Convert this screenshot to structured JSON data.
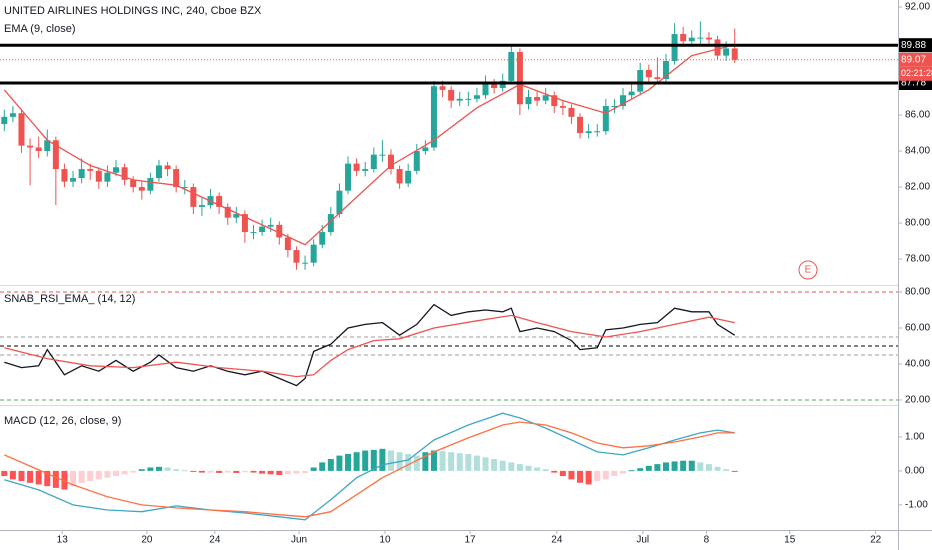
{
  "chart_data": [
    {
      "type": "candlestick",
      "title": "UNITED AIRLINES HOLDINGS INC, 240, Cboe BZX",
      "subtitle": "EMA (9, close)",
      "up_color": "#26a69a",
      "down_color": "#ef5350",
      "open": [
        85.5,
        85.9,
        86.1,
        84.3,
        84.2,
        84.0,
        84.6,
        83.0,
        82.3,
        82.5,
        83.0,
        82.9,
        82.3,
        82.8,
        83.1,
        82.4,
        82.0,
        81.8,
        82.5,
        83.2,
        83.0,
        82.0,
        82.0,
        80.9,
        81.0,
        81.5,
        80.9,
        80.3,
        80.5,
        79.5,
        79.5,
        79.8,
        79.9,
        79.2,
        78.5,
        77.8,
        77.8,
        78.8,
        79.5,
        80.5,
        81.8,
        83.3,
        82.9,
        83.0,
        83.8,
        83.8,
        83.0,
        82.2,
        82.9,
        84.0,
        84.2,
        87.6,
        87.4,
        86.8,
        86.9,
        86.9,
        87.1,
        87.8,
        87.5,
        87.9,
        89.5,
        86.6,
        87.0,
        86.8,
        87.1,
        86.5,
        86.4,
        85.9,
        85.0,
        85.1,
        85.1,
        86.5,
        86.5,
        87.1,
        87.3,
        88.5,
        88.1,
        88.0,
        89.0,
        90.5,
        90.1,
        90.3,
        90.3,
        90.2,
        89.3,
        89.7
      ],
      "high": [
        86.3,
        86.5,
        86.3,
        84.7,
        84.8,
        85.2,
        84.8,
        83.3,
        82.9,
        83.6,
        83.3,
        83.1,
        83.2,
        83.5,
        83.3,
        82.6,
        82.3,
        82.8,
        83.5,
        83.4,
        83.2,
        82.4,
        82.2,
        81.4,
        81.9,
        81.7,
        81.1,
        80.9,
        80.7,
        79.9,
        80.2,
        80.3,
        80.1,
        79.4,
        78.7,
        78.2,
        79.1,
        79.9,
        80.9,
        82.2,
        83.7,
        83.6,
        83.4,
        84.2,
        84.6,
        84.1,
        83.2,
        83.3,
        84.4,
        84.6,
        87.9,
        87.9,
        87.6,
        87.3,
        87.3,
        87.5,
        88.2,
        88.0,
        88.3,
        89.8,
        89.7,
        87.4,
        87.3,
        87.5,
        87.3,
        86.8,
        86.6,
        86.1,
        85.5,
        85.5,
        86.9,
        86.9,
        87.5,
        87.7,
        88.9,
        88.8,
        89.2,
        89.4,
        91.1,
        90.9,
        90.7,
        91.2,
        90.6,
        90.4,
        90.1,
        90.8
      ],
      "low": [
        85.1,
        85.6,
        83.9,
        82.1,
        83.6,
        83.7,
        81.0,
        82.0,
        82.0,
        82.2,
        82.4,
        81.9,
        82.0,
        82.6,
        82.1,
        81.7,
        81.3,
        81.6,
        82.3,
        82.6,
        81.7,
        81.6,
        80.5,
        80.4,
        80.8,
        80.5,
        79.9,
        80.0,
        78.9,
        79.1,
        79.3,
        79.5,
        78.8,
        78.1,
        77.4,
        77.4,
        77.6,
        78.6,
        79.3,
        80.3,
        81.6,
        82.6,
        82.6,
        82.8,
        83.4,
        82.7,
        81.9,
        82.0,
        82.7,
        83.8,
        84.0,
        87.0,
        86.4,
        86.5,
        86.5,
        86.7,
        86.9,
        87.2,
        87.3,
        87.7,
        86.0,
        86.3,
        86.5,
        86.6,
        86.1,
        86.0,
        85.5,
        84.7,
        84.7,
        84.8,
        84.9,
        86.1,
        86.3,
        86.9,
        87.1,
        87.8,
        87.7,
        87.8,
        88.8,
        89.8,
        89.9,
        89.9,
        89.9,
        89.1,
        89.0,
        88.9
      ],
      "close": [
        85.9,
        86.1,
        84.3,
        84.2,
        84.0,
        84.6,
        83.0,
        82.3,
        82.5,
        83.0,
        82.9,
        82.3,
        82.8,
        83.1,
        82.4,
        82.0,
        81.8,
        82.5,
        83.2,
        83.0,
        82.0,
        82.0,
        80.9,
        81.0,
        81.5,
        80.9,
        80.3,
        80.5,
        79.5,
        79.5,
        79.8,
        79.9,
        79.2,
        78.5,
        77.8,
        77.8,
        78.8,
        79.5,
        80.5,
        81.8,
        83.3,
        82.9,
        83.0,
        83.8,
        83.8,
        83.0,
        82.2,
        82.9,
        84.0,
        84.2,
        87.6,
        87.4,
        86.8,
        86.9,
        86.9,
        87.1,
        87.8,
        87.5,
        87.9,
        89.5,
        86.6,
        87.0,
        86.8,
        87.1,
        86.5,
        86.4,
        85.9,
        85.0,
        85.1,
        85.1,
        86.5,
        86.5,
        87.1,
        87.3,
        88.5,
        88.1,
        88.0,
        89.0,
        90.5,
        90.1,
        90.3,
        90.3,
        90.2,
        89.3,
        89.7,
        89.07
      ],
      "series": [
        {
          "color": "#ef5350",
          "x": [
            0,
            5,
            10,
            15,
            20,
            25,
            30,
            35,
            40,
            45,
            50,
            55,
            60,
            65,
            70,
            75,
            80,
            85
          ],
          "values": [
            87.4,
            84.6,
            83.2,
            82.4,
            82.1,
            81.0,
            79.9,
            78.8,
            81.0,
            83.2,
            84.6,
            86.4,
            87.7,
            86.8,
            86.1,
            87.4,
            89.3,
            89.9
          ]
        }
      ],
      "price_lines": [
        89.88,
        87.78
      ],
      "price_line_color": "#000000",
      "last_price": 89.07,
      "countdown": "02:21:28",
      "marker": "E",
      "xlim": [
        -0.5,
        104
      ],
      "ylim": [
        76.56,
        92.39
      ],
      "yticks": [
        {
          "value": 78,
          "label": "78.00"
        },
        {
          "value": 80,
          "label": "80.00"
        },
        {
          "value": 82,
          "label": "82.00"
        },
        {
          "value": 84,
          "label": "84.00"
        },
        {
          "value": 86,
          "label": "86.00"
        },
        {
          "value": 92,
          "label": "92.00"
        }
      ]
    },
    {
      "type": "line",
      "title": "SNAB_RSI_EMA_ (14, 12)",
      "series": [
        {
          "color": "#131722",
          "x": [
            0,
            2,
            4,
            5,
            7,
            9,
            11,
            13,
            15,
            17,
            18,
            20,
            22,
            24,
            26,
            28,
            30,
            32,
            34,
            35,
            36,
            38,
            40,
            42,
            44,
            46,
            48,
            50,
            52,
            54,
            56,
            58,
            59,
            60,
            62,
            64,
            66,
            67,
            69,
            70,
            72,
            74,
            76,
            78,
            80,
            82,
            83,
            85
          ],
          "values": [
            41,
            38,
            39,
            48,
            34,
            39,
            36,
            42,
            36,
            41,
            45,
            38,
            36,
            39,
            36,
            34,
            36,
            32,
            28,
            32,
            47,
            51,
            60,
            62,
            63,
            56,
            62,
            73,
            67,
            69,
            70,
            69,
            71,
            58,
            60,
            58,
            53,
            48,
            49,
            59,
            60,
            62,
            63,
            71,
            69,
            69,
            62,
            56
          ]
        },
        {
          "color": "#ef5350",
          "x": [
            0,
            5,
            10,
            15,
            20,
            25,
            30,
            34,
            36,
            38,
            40,
            43,
            46,
            50,
            55,
            59,
            62,
            66,
            70,
            74,
            78,
            82,
            85
          ],
          "values": [
            49,
            43,
            39,
            38,
            41,
            38,
            36,
            33,
            34,
            42,
            48,
            53,
            54,
            60,
            64,
            67,
            63,
            58,
            55,
            58,
            62,
            66,
            63
          ]
        }
      ],
      "levels": [
        {
          "value": 80,
          "color": "#ef5350"
        },
        {
          "value": 55,
          "color": "#9e9e9e"
        },
        {
          "value": 50,
          "color": "#000000"
        },
        {
          "value": 45,
          "color": "#9e9e9e"
        },
        {
          "value": 20,
          "color": "#4caf50"
        }
      ],
      "xlim": [
        -0.5,
        104
      ],
      "ylim": [
        17.2,
        83.9
      ],
      "yticks": [
        {
          "value": 20,
          "label": "20.00"
        },
        {
          "value": 40,
          "label": "40.00"
        },
        {
          "value": 60,
          "label": "60.00"
        },
        {
          "value": 80,
          "label": "80.00"
        }
      ]
    },
    {
      "type": "macd",
      "title": "MACD (12, 26, close, 9)",
      "histogram": [
        -0.15,
        -0.25,
        -0.3,
        -0.35,
        -0.4,
        -0.45,
        -0.5,
        -0.55,
        -0.45,
        -0.35,
        -0.3,
        -0.25,
        -0.2,
        -0.15,
        -0.1,
        -0.05,
        0.05,
        0.1,
        0.12,
        0.1,
        0.05,
        0.02,
        -0.02,
        -0.05,
        -0.05,
        -0.06,
        -0.05,
        -0.06,
        -0.04,
        -0.05,
        -0.08,
        -0.1,
        -0.12,
        -0.1,
        -0.08,
        -0.06,
        0.1,
        0.25,
        0.35,
        0.45,
        0.5,
        0.55,
        0.6,
        0.62,
        0.65,
        0.6,
        0.55,
        0.5,
        0.45,
        0.55,
        0.6,
        0.58,
        0.55,
        0.52,
        0.5,
        0.45,
        0.4,
        0.35,
        0.3,
        0.25,
        0.2,
        0.15,
        0.1,
        0.05,
        -0.05,
        -0.15,
        -0.25,
        -0.35,
        -0.4,
        -0.3,
        -0.25,
        -0.15,
        -0.08,
        0.02,
        0.08,
        0.15,
        0.2,
        0.25,
        0.28,
        0.3,
        0.3,
        0.25,
        0.2,
        0.12,
        0.05,
        -0.02
      ],
      "histogram_colors": [
        "#26a69a",
        "#b2dfdb",
        "#ff5252",
        "#ffcdd2"
      ],
      "series": [
        {
          "color": "#3fa7c6",
          "x": [
            0,
            4,
            8,
            12,
            16,
            20,
            24,
            28,
            32,
            35,
            38,
            41,
            44,
            47,
            50,
            54,
            58,
            60,
            63,
            66,
            69,
            72,
            75,
            78,
            81,
            83,
            85
          ],
          "values": [
            -0.26,
            -0.56,
            -1.0,
            -1.15,
            -1.2,
            -1.03,
            -1.15,
            -1.24,
            -1.35,
            -1.44,
            -0.85,
            -0.2,
            0.18,
            0.32,
            0.91,
            1.35,
            1.7,
            1.56,
            1.26,
            0.91,
            0.56,
            0.47,
            0.68,
            0.91,
            1.12,
            1.2,
            1.12
          ]
        },
        {
          "color": "#ff7043",
          "x": [
            0,
            4,
            8,
            12,
            16,
            20,
            24,
            28,
            32,
            35,
            38,
            41,
            44,
            47,
            50,
            54,
            58,
            60,
            63,
            66,
            69,
            72,
            75,
            78,
            81,
            83,
            85
          ],
          "values": [
            0.47,
            0.03,
            -0.41,
            -0.76,
            -1.0,
            -1.09,
            -1.15,
            -1.2,
            -1.29,
            -1.35,
            -1.2,
            -0.7,
            -0.2,
            0.18,
            0.56,
            0.97,
            1.35,
            1.44,
            1.35,
            1.12,
            0.82,
            0.68,
            0.74,
            0.85,
            1.0,
            1.12,
            1.12
          ]
        }
      ],
      "xlim": [
        -0.5,
        104
      ],
      "ylim": [
        -1.74,
        1.94
      ],
      "yticks": [
        {
          "value": -1,
          "label": "-1.00"
        },
        {
          "value": 0,
          "label": "0.00"
        },
        {
          "value": 1,
          "label": "1.00"
        }
      ],
      "xticks": [
        {
          "value": 6.74,
          "label": "13"
        },
        {
          "value": 16.6,
          "label": "20"
        },
        {
          "value": 24.5,
          "label": "24"
        },
        {
          "value": 34.3,
          "label": "Jun"
        },
        {
          "value": 44.3,
          "label": "10"
        },
        {
          "value": 54.2,
          "label": "17"
        },
        {
          "value": 64.3,
          "label": "24"
        },
        {
          "value": 74.3,
          "label": "Jul"
        },
        {
          "value": 81.7,
          "label": "8"
        },
        {
          "value": 91.4,
          "label": "15"
        },
        {
          "value": 101.4,
          "label": "22"
        }
      ]
    }
  ]
}
